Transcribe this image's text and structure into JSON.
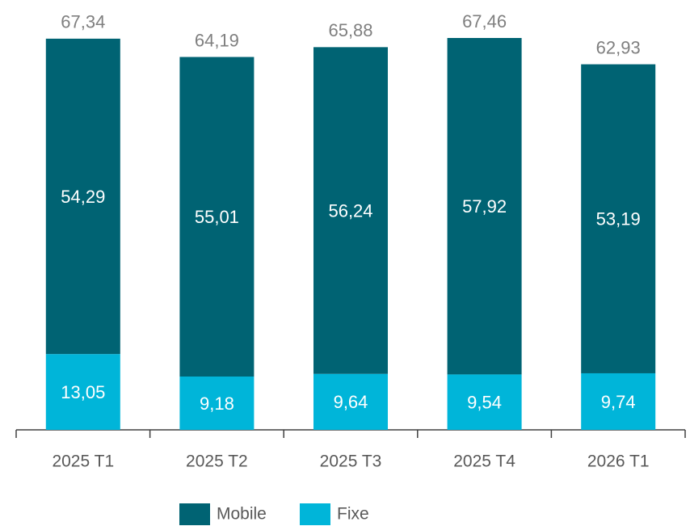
{
  "chart_data": {
    "type": "stacked_bar",
    "categories": [
      "2025 T1",
      "2025 T2",
      "2025 T3",
      "2025 T4",
      "2026 T1"
    ],
    "series": [
      {
        "name": "Fixe",
        "color": "#00b5d9",
        "values": [
          13.05,
          9.18,
          9.64,
          9.54,
          9.74
        ],
        "value_labels": [
          "13,05",
          "9,18",
          "9,64",
          "9,54",
          "9,74"
        ]
      },
      {
        "name": "Mobile",
        "color": "#006373",
        "values": [
          54.29,
          55.01,
          56.24,
          57.92,
          53.19
        ],
        "value_labels": [
          "54,29",
          "55,01",
          "56,24",
          "57,92",
          "53,19"
        ]
      }
    ],
    "totals": [
      67.34,
      64.19,
      65.88,
      67.46,
      62.93
    ],
    "totals_labels": [
      "67,34",
      "64,19",
      "65,88",
      "67,46",
      "62,93"
    ],
    "legend": "bottom"
  }
}
